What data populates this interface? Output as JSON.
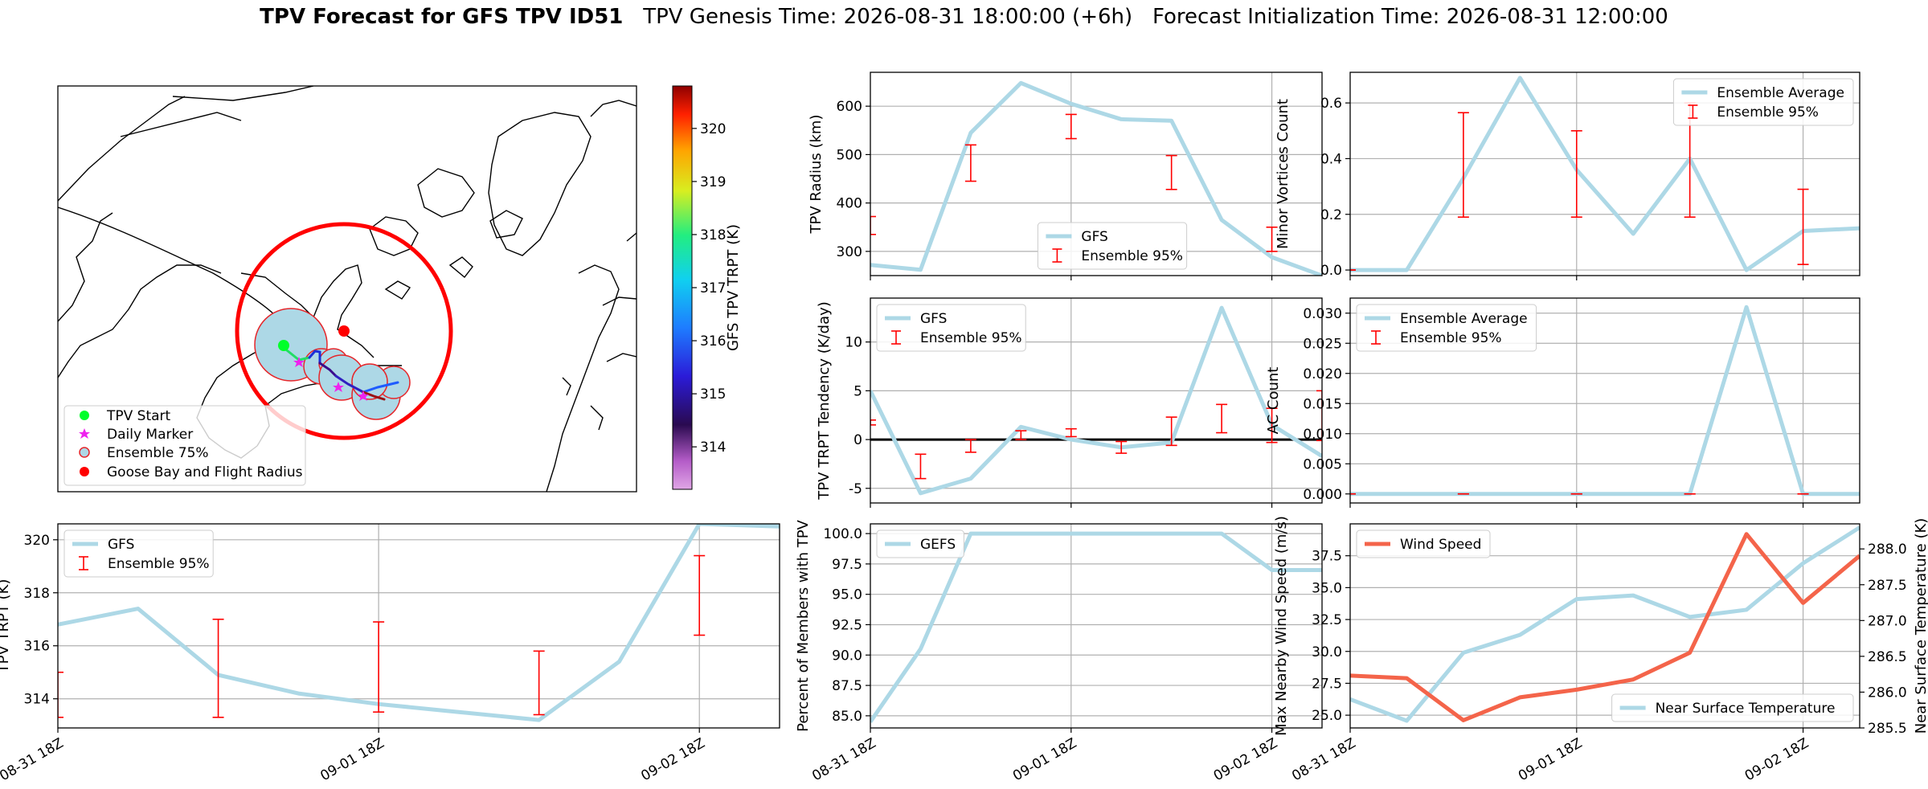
{
  "title": {
    "bold": "TPV Forecast for GFS TPV ID51",
    "genesis": "TPV Genesis Time: 2026-08-31 18:00:00 (+6h)",
    "init": "Forecast Initialization Time: 2026-08-31 12:00:00"
  },
  "colors": {
    "gfs_line": "#add8e6",
    "errorbar": "#ff0000",
    "wind": "#f4644a",
    "temp": "#add8e6",
    "temp_axis": "#4169e1",
    "wind_axis": "#f4644a"
  },
  "map": {
    "legend": [
      "TPV Start",
      "Daily Marker",
      "Ensemble 75%",
      "Goose Bay and Flight Radius"
    ],
    "colorbar": {
      "label": "GFS TPV TRPT (K)",
      "ticks": [
        314,
        315,
        316,
        317,
        318,
        319,
        320
      ],
      "range": [
        313.2,
        320.8
      ]
    }
  },
  "chart_data": [
    {
      "id": "radius",
      "type": "line",
      "ylabel": "TPV Radius (km)",
      "ylim": [
        250,
        670
      ],
      "yticks": [
        300,
        400,
        500,
        600
      ],
      "x": [
        0,
        1,
        2,
        3,
        4,
        5,
        6,
        7,
        8,
        9
      ],
      "xlim": [
        0,
        9
      ],
      "vgrid": [
        4,
        8
      ],
      "xticklabels": [],
      "series": [
        {
          "name": "GFS",
          "values": [
            272,
            262,
            545,
            648,
            605,
            573,
            570,
            365,
            288,
            250
          ]
        }
      ],
      "errorbars": [
        {
          "x": 0,
          "low": 335,
          "high": 372
        },
        {
          "x": 2,
          "low": 445,
          "high": 520
        },
        {
          "x": 4,
          "low": 533,
          "high": 583
        },
        {
          "x": 6,
          "low": 428,
          "high": 498
        },
        {
          "x": 8,
          "low": 300,
          "high": 350
        }
      ],
      "legend": {
        "items": [
          "GFS",
          "Ensemble 95%"
        ],
        "loc": "lower-center"
      }
    },
    {
      "id": "minor",
      "type": "line",
      "ylabel": "Minor Vortices Count",
      "ylim": [
        -0.02,
        0.71
      ],
      "yticks": [
        0.0,
        0.2,
        0.4,
        0.6
      ],
      "ytickfmt": 1,
      "x": [
        0,
        1,
        2,
        3,
        4,
        5,
        6,
        7,
        8,
        9
      ],
      "xlim": [
        0,
        9
      ],
      "vgrid": [
        4,
        8
      ],
      "xticklabels": [],
      "series": [
        {
          "name": "Ensemble Average",
          "values": [
            0,
            0,
            0.33,
            0.69,
            0.36,
            0.13,
            0.4,
            0,
            0.14,
            0.15
          ]
        }
      ],
      "errorbars": [
        {
          "x": 0,
          "low": 0,
          "high": 0
        },
        {
          "x": 2,
          "low": 0.19,
          "high": 0.565
        },
        {
          "x": 4,
          "low": 0.19,
          "high": 0.5
        },
        {
          "x": 6,
          "low": 0.19,
          "high": 0.6
        },
        {
          "x": 8,
          "low": 0.02,
          "high": 0.29
        }
      ],
      "legend": {
        "items": [
          "Ensemble Average",
          "Ensemble 95%"
        ],
        "loc": "top-right"
      }
    },
    {
      "id": "tendency",
      "type": "line",
      "ylabel": "TPV TRPT Tendency (K/day)",
      "ylim": [
        -6.5,
        14.5
      ],
      "yticks": [
        -5,
        0,
        5,
        10
      ],
      "x": [
        0,
        1,
        2,
        3,
        4,
        5,
        6,
        7,
        8,
        9
      ],
      "xlim": [
        0,
        9
      ],
      "vgrid": [
        4,
        8
      ],
      "xticklabels": [],
      "zeroline": true,
      "series": [
        {
          "name": "GFS",
          "values": [
            5,
            -5.5,
            -4,
            1.3,
            0,
            -0.8,
            -0.3,
            13.5,
            1.5,
            -1.7
          ]
        }
      ],
      "errorbars": [
        {
          "x": 0,
          "low": 1.5,
          "high": 2
        },
        {
          "x": 1,
          "low": -4,
          "high": -1.5
        },
        {
          "x": 2,
          "low": -1.3,
          "high": 0
        },
        {
          "x": 3,
          "low": 0,
          "high": 0.9
        },
        {
          "x": 4,
          "low": 0.3,
          "high": 1.1
        },
        {
          "x": 5,
          "low": -1.4,
          "high": -0.2
        },
        {
          "x": 6,
          "low": -0.6,
          "high": 2.3
        },
        {
          "x": 7,
          "low": 0.7,
          "high": 3.6
        },
        {
          "x": 8,
          "low": -0.3,
          "high": 3.2
        },
        {
          "x": 9,
          "low": -0.1,
          "high": 5
        }
      ],
      "legend": {
        "items": [
          "GFS",
          "Ensemble 95%"
        ],
        "loc": "top-left"
      }
    },
    {
      "id": "ac",
      "type": "line",
      "ylabel": "AC Count",
      "ylim": [
        -0.0015,
        0.0325
      ],
      "yticks": [
        0.0,
        0.005,
        0.01,
        0.015,
        0.02,
        0.025,
        0.03
      ],
      "ytickfmt": 3,
      "x": [
        0,
        1,
        2,
        3,
        4,
        5,
        6,
        7,
        8,
        9
      ],
      "xlim": [
        0,
        9
      ],
      "vgrid": [
        4,
        8
      ],
      "xticklabels": [],
      "series": [
        {
          "name": "Ensemble Average",
          "values": [
            0,
            0,
            0,
            0,
            0,
            0,
            0,
            0.031,
            0,
            0
          ]
        }
      ],
      "errorbars": [
        {
          "x": 0,
          "low": 0,
          "high": 0
        },
        {
          "x": 2,
          "low": 0,
          "high": 0
        },
        {
          "x": 4,
          "low": 0,
          "high": 0
        },
        {
          "x": 6,
          "low": 0,
          "high": 0
        },
        {
          "x": 8,
          "low": 0,
          "high": 0
        }
      ],
      "legend": {
        "items": [
          "Ensemble Average",
          "Ensemble 95%"
        ],
        "loc": "top-left"
      }
    },
    {
      "id": "trpt",
      "type": "line",
      "ylabel": "TPV TRPT (K)",
      "ylim": [
        312.9,
        320.6
      ],
      "yticks": [
        314,
        316,
        318,
        320
      ],
      "x": [
        0,
        1,
        2,
        3,
        4,
        5,
        6,
        7,
        8,
        9
      ],
      "xlim": [
        0,
        9
      ],
      "vgrid": [
        4,
        8
      ],
      "xticklabels": [
        {
          "x": 0,
          "label": "08-31 18Z"
        },
        {
          "x": 4,
          "label": "09-01 18Z"
        },
        {
          "x": 8,
          "label": "09-02 18Z"
        }
      ],
      "series": [
        {
          "name": "GFS",
          "values": [
            316.8,
            317.4,
            314.9,
            314.2,
            313.8,
            313.5,
            313.2,
            315.4,
            320.6,
            320.5
          ]
        }
      ],
      "errorbars": [
        {
          "x": 0,
          "low": 313.3,
          "high": 315
        },
        {
          "x": 2,
          "low": 313.3,
          "high": 317
        },
        {
          "x": 4,
          "low": 313.5,
          "high": 316.9
        },
        {
          "x": 6,
          "low": 313.4,
          "high": 315.8
        },
        {
          "x": 8,
          "low": 316.4,
          "high": 319.4
        }
      ],
      "legend": {
        "items": [
          "GFS",
          "Ensemble 95%"
        ],
        "loc": "top-left"
      }
    },
    {
      "id": "percent",
      "type": "line",
      "ylabel": "Percent of Members with TPV",
      "ylim": [
        84,
        100.8
      ],
      "yticks": [
        85.0,
        87.5,
        90.0,
        92.5,
        95.0,
        97.5,
        100.0
      ],
      "ytickfmt": 1,
      "x": [
        0,
        1,
        2,
        3,
        4,
        5,
        6,
        7,
        8,
        9
      ],
      "xlim": [
        0,
        9
      ],
      "vgrid": [
        4,
        8
      ],
      "xticklabels": [
        {
          "x": 0,
          "label": "08-31 18Z"
        },
        {
          "x": 4,
          "label": "09-01 18Z"
        },
        {
          "x": 8,
          "label": "09-02 18Z"
        }
      ],
      "series": [
        {
          "name": "GEFS",
          "values": [
            84.5,
            90.5,
            100,
            100,
            100,
            100,
            100,
            100,
            97,
            97
          ]
        }
      ],
      "legend": {
        "items": [
          "GEFS"
        ],
        "loc": "top-left"
      }
    },
    {
      "id": "wind",
      "type": "line",
      "ylabel": "Max Nearby Wind Speed (m/s)",
      "ylim": [
        24,
        40
      ],
      "yticks": [
        25.0,
        27.5,
        30.0,
        32.5,
        35.0,
        37.5
      ],
      "ytickfmt": 1,
      "x": [
        0,
        1,
        2,
        3,
        4,
        5,
        6,
        7,
        8,
        9
      ],
      "xlim": [
        0,
        9
      ],
      "vgrid": [
        4,
        8
      ],
      "xticklabels": [
        {
          "x": 0,
          "label": "08-31 18Z"
        },
        {
          "x": 4,
          "label": "09-01 18Z"
        },
        {
          "x": 8,
          "label": "09-02 18Z"
        }
      ],
      "series": [
        {
          "name": "Wind Speed",
          "values": [
            28.1,
            27.9,
            24.6,
            26.4,
            27.0,
            27.8,
            29.9,
            39.2,
            33.8,
            37.5
          ]
        }
      ],
      "y2label": "Near Surface Temperature (K)",
      "y2lim": [
        285.5,
        288.35
      ],
      "y2ticks": [
        285.5,
        286.0,
        286.5,
        287.0,
        287.5,
        288.0
      ],
      "series2": [
        {
          "name": "Near Surface Temperature",
          "values": [
            285.9,
            285.6,
            286.55,
            286.8,
            287.3,
            287.35,
            287.05,
            287.15,
            287.8,
            288.3
          ]
        }
      ],
      "legend": {
        "items": [
          "Wind Speed"
        ],
        "loc": "top-left"
      },
      "legend2": {
        "items": [
          "Near Surface Temperature"
        ],
        "loc": "bottom-right"
      }
    }
  ]
}
